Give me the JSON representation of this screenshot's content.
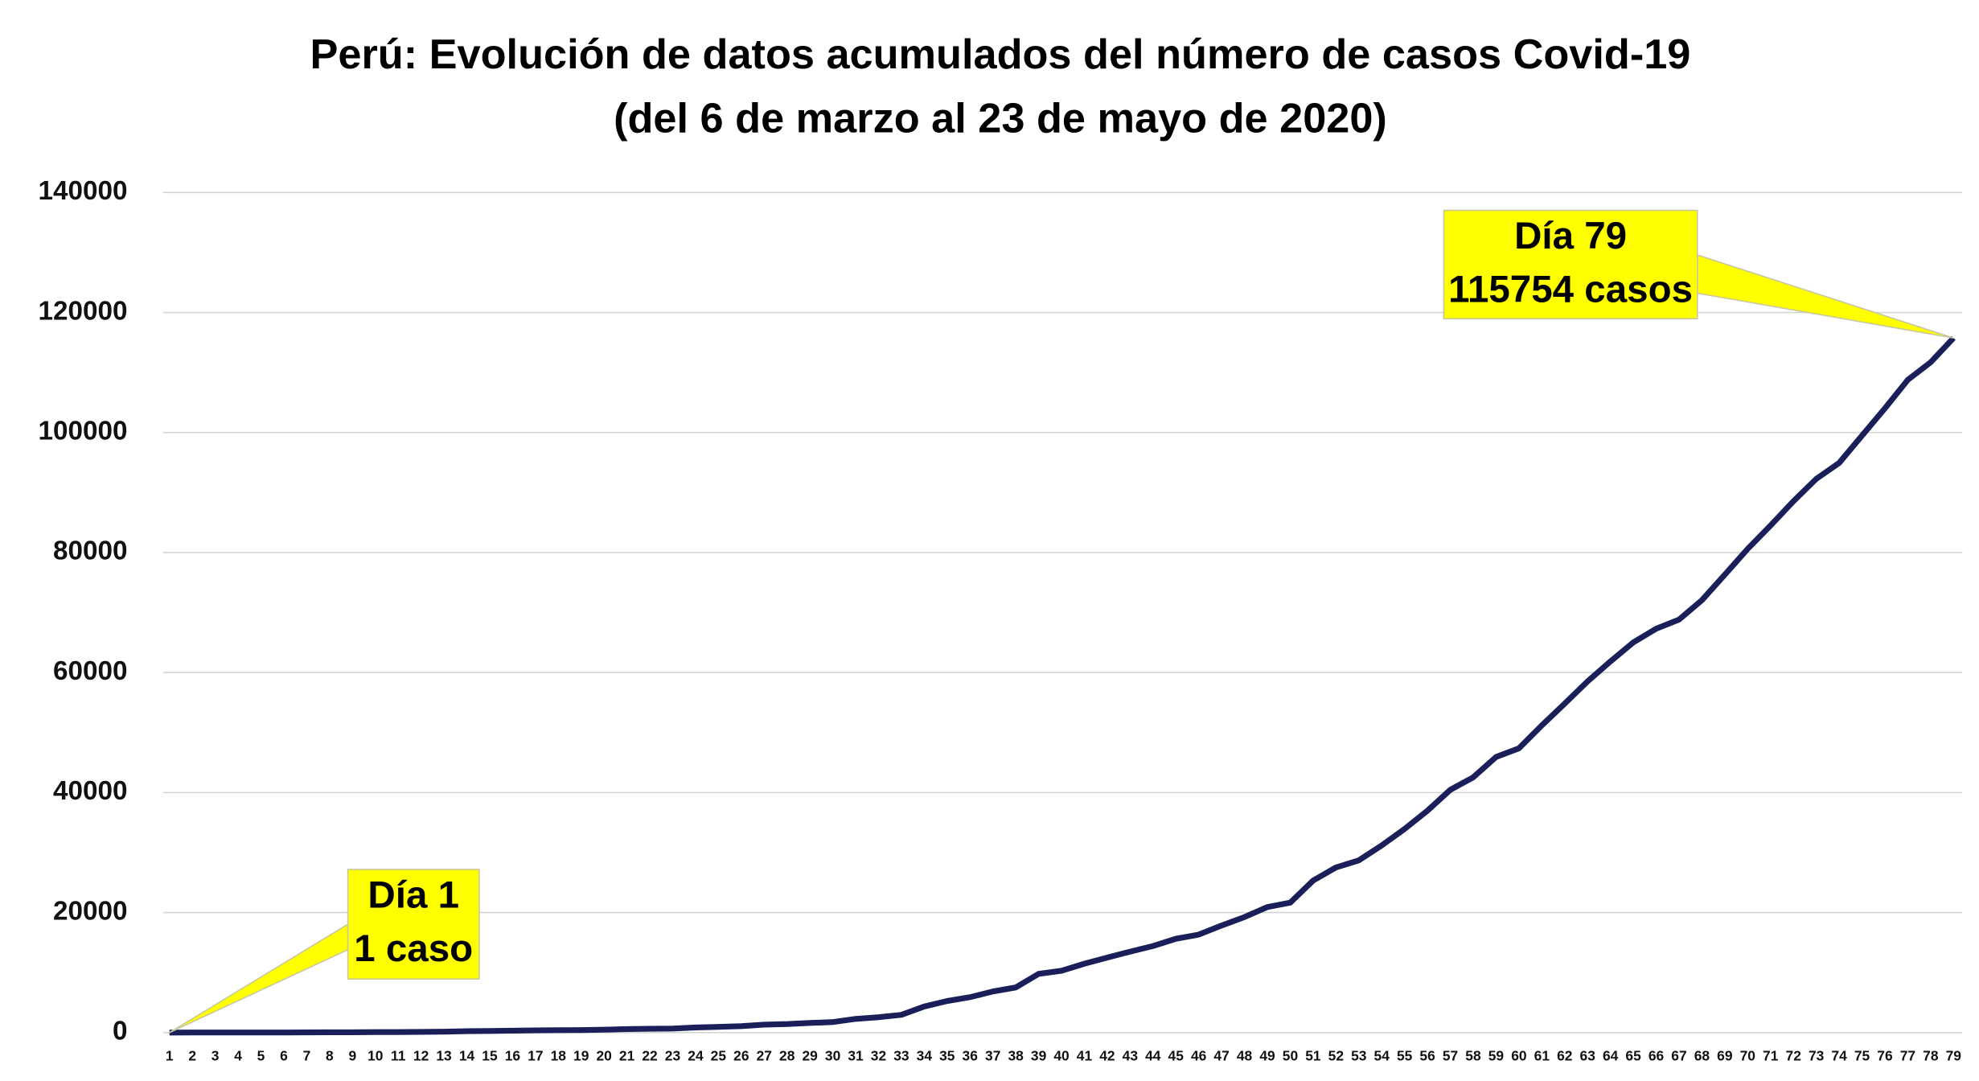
{
  "chart_data": {
    "type": "line",
    "title": [
      "Perú: Evolución de datos acumulados del número de casos Covid-19",
      "(del 6 de marzo al 23 de mayo de 2020)"
    ],
    "categories": [
      "1",
      "2",
      "3",
      "4",
      "5",
      "6",
      "7",
      "8",
      "9",
      "10",
      "11",
      "12",
      "13",
      "14",
      "15",
      "16",
      "17",
      "18",
      "19",
      "20",
      "21",
      "22",
      "23",
      "24",
      "25",
      "26",
      "27",
      "28",
      "29",
      "30",
      "31",
      "32",
      "33",
      "34",
      "35",
      "36",
      "37",
      "38",
      "39",
      "40",
      "41",
      "42",
      "43",
      "44",
      "45",
      "46",
      "47",
      "48",
      "49",
      "50",
      "51",
      "52",
      "53",
      "54",
      "55",
      "56",
      "57",
      "58",
      "59",
      "60",
      "61",
      "62",
      "63",
      "64",
      "65",
      "66",
      "67",
      "68",
      "69",
      "70",
      "71",
      "72",
      "73",
      "74",
      "75",
      "76",
      "77",
      "78",
      "79"
    ],
    "series": [
      {
        "name": "casos",
        "color": "#1a1f5a",
        "values": [
          1,
          6,
          7,
          9,
          11,
          17,
          22,
          38,
          43,
          71,
          86,
          117,
          145,
          234,
          263,
          318,
          363,
          395,
          416,
          480,
          580,
          635,
          671,
          852,
          950,
          1065,
          1323,
          1414,
          1595,
          1746,
          2281,
          2561,
          2954,
          4342,
          5256,
          5897,
          6848,
          7519,
          9784,
          10303,
          11475,
          12491,
          13489,
          14420,
          15628,
          16325,
          17837,
          19250,
          20914,
          21648,
          25331,
          27517,
          28699,
          31190,
          33931,
          36976,
          40459,
          42534,
          45928,
          47372,
          51189,
          54817,
          58526,
          61847,
          65015,
          67307,
          68822,
          72059,
          76306,
          80604,
          84495,
          88541,
          92273,
          94933,
          99483,
          104020,
          108769,
          111698,
          115754
        ]
      }
    ],
    "ylim": [
      0,
      140000
    ],
    "yticks": [
      0,
      20000,
      40000,
      60000,
      80000,
      100000,
      120000,
      140000
    ],
    "grid": true,
    "annotations": [
      {
        "lines": [
          "Día 1",
          "1 caso"
        ],
        "point": 0,
        "color": "#ffff00"
      },
      {
        "lines": [
          "Día 79",
          "115754 casos"
        ],
        "point": 78,
        "color": "#ffff00"
      }
    ]
  }
}
